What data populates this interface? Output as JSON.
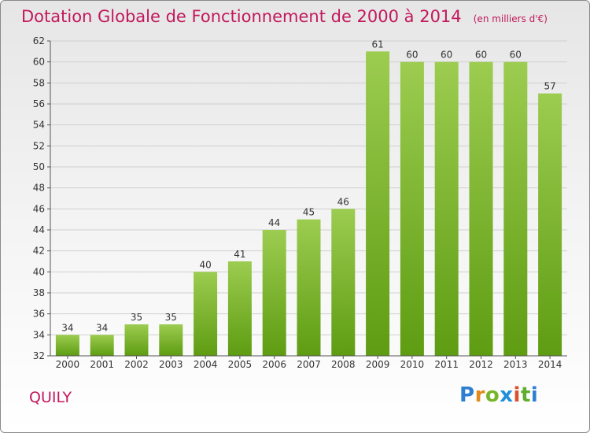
{
  "title": "Dotation Globale de Fonctionnement de 2000 à 2014",
  "unit": "(en milliers d'€)",
  "city": "QUILY",
  "logo": {
    "p": "P",
    "r": "r",
    "o": "o",
    "x": "x",
    "i": "i",
    "t": "t",
    "i2": "i"
  },
  "colors": {
    "bar_light": "#9ccc50",
    "bar_dark": "#5e9c12",
    "title": "#c2185b",
    "grid": "#d0d0d0"
  },
  "chart_data": {
    "type": "bar",
    "title": "Dotation Globale de Fonctionnement de 2000 à 2014",
    "subtitle": "(en milliers d'€)",
    "xlabel": "",
    "ylabel": "",
    "categories": [
      "2000",
      "2001",
      "2002",
      "2003",
      "2004",
      "2005",
      "2006",
      "2007",
      "2008",
      "2009",
      "2010",
      "2011",
      "2012",
      "2013",
      "2014"
    ],
    "values": [
      34,
      34,
      35,
      35,
      40,
      41,
      44,
      45,
      46,
      61,
      60,
      60,
      60,
      60,
      57
    ],
    "ylim": [
      32,
      62
    ],
    "yticks": [
      32,
      34,
      36,
      38,
      40,
      42,
      44,
      46,
      48,
      50,
      52,
      54,
      56,
      58,
      60,
      62
    ],
    "grid": true,
    "data_labels": true
  }
}
